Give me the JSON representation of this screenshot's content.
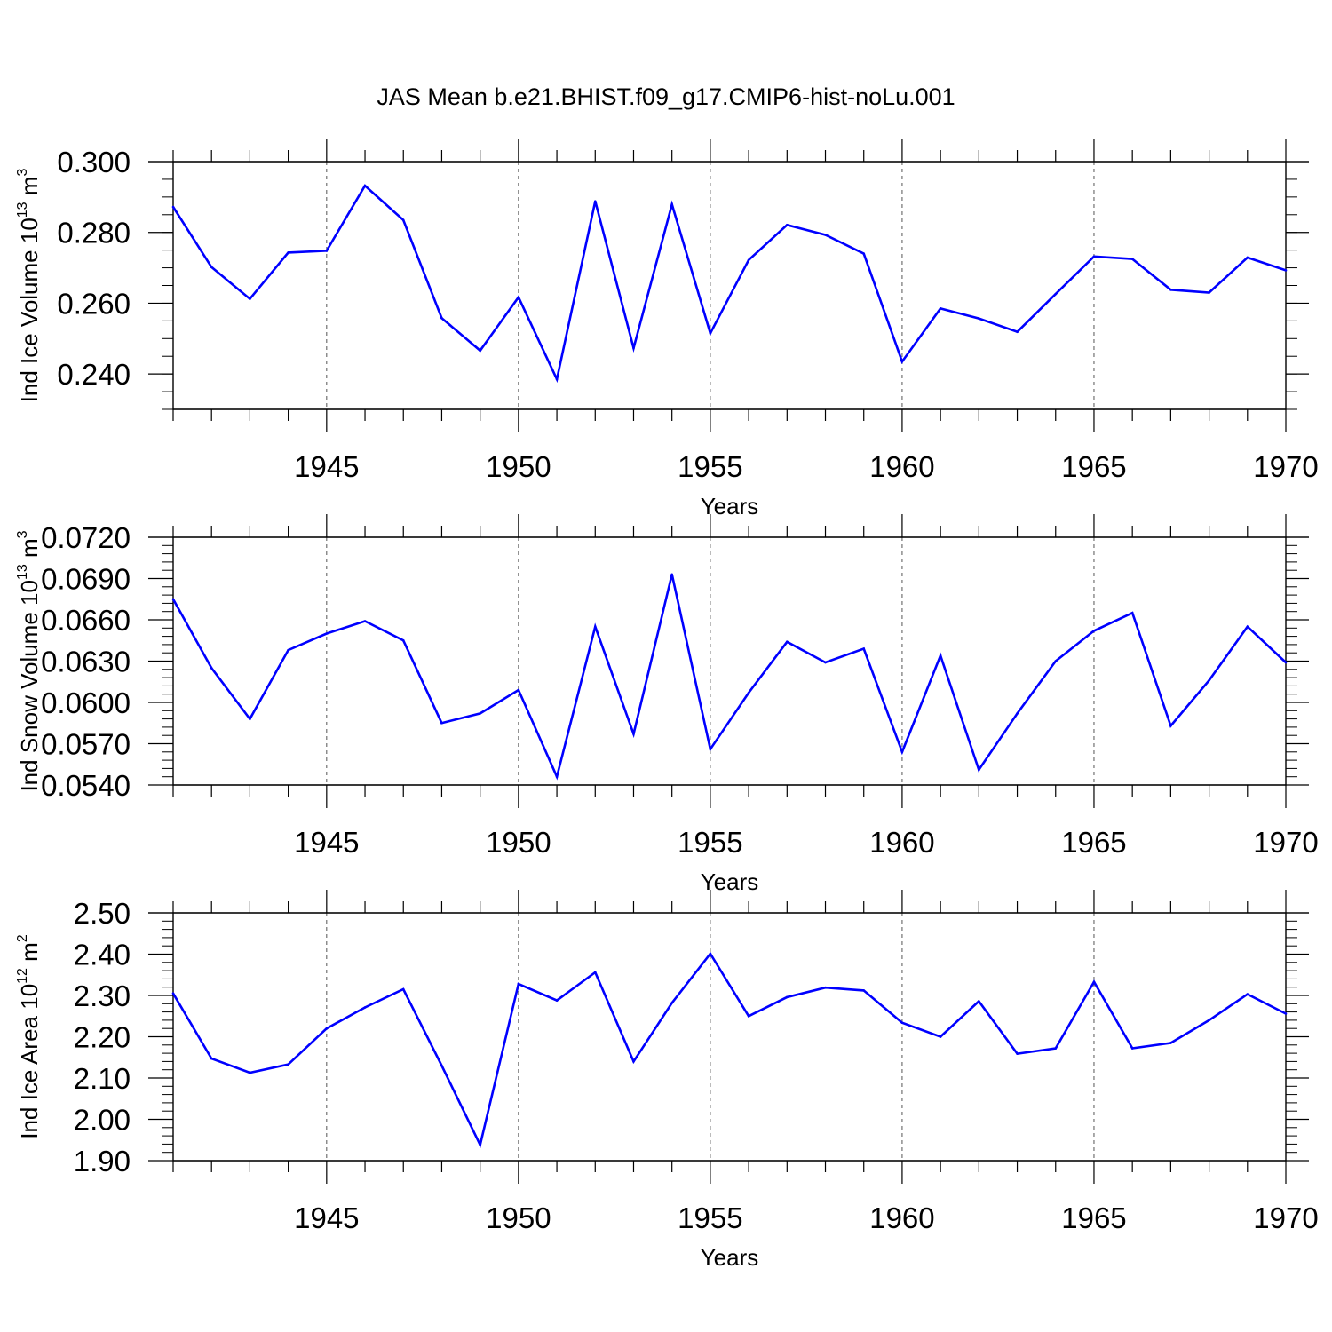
{
  "figure_title": "JAS Mean b.e21.BHIST.f09_g17.CMIP6-hist-noLu.001",
  "colors": {
    "line": "#0000ff",
    "axes": "#000000",
    "grid": "#555555"
  },
  "chart_data": [
    {
      "type": "line",
      "ylabel_main": "Ind Ice Volume 10",
      "ylabel_exp": "13",
      "ylabel_unit": " m",
      "ylabel_unit_exp": "3",
      "xlabel": "Years",
      "xlim": [
        1941,
        1970
      ],
      "ylim": [
        0.23,
        0.3
      ],
      "yticks": [
        0.24,
        0.26,
        0.28,
        0.3
      ],
      "ytick_labels": [
        "0.240",
        "0.260",
        "0.280",
        "0.300"
      ],
      "yminor_step": 0.005,
      "xticks": [
        1945,
        1950,
        1955,
        1960,
        1965,
        1970
      ],
      "xtick_labels": [
        "1945",
        "1950",
        "1955",
        "1960",
        "1965",
        "1970"
      ],
      "x": [
        1941,
        1942,
        1943,
        1944,
        1945,
        1946,
        1947,
        1948,
        1949,
        1950,
        1951,
        1952,
        1953,
        1954,
        1955,
        1956,
        1957,
        1958,
        1959,
        1960,
        1961,
        1962,
        1963,
        1964,
        1965,
        1966,
        1967,
        1968,
        1969,
        1970
      ],
      "values": [
        0.2872,
        0.2702,
        0.2612,
        0.2743,
        0.2748,
        0.2932,
        0.2835,
        0.2558,
        0.2466,
        0.2617,
        0.2385,
        0.2888,
        0.2473,
        0.2879,
        0.2515,
        0.2722,
        0.2821,
        0.2793,
        0.274,
        0.2435,
        0.2585,
        0.2557,
        0.2519,
        0.2626,
        0.2732,
        0.2725,
        0.2638,
        0.263,
        0.2729,
        0.2693
      ]
    },
    {
      "type": "line",
      "ylabel_main": "Ind Snow Volume 10",
      "ylabel_exp": "13",
      "ylabel_unit": " m",
      "ylabel_unit_exp": "3",
      "xlabel": "Years",
      "xlim": [
        1941,
        1970
      ],
      "ylim": [
        0.054,
        0.072
      ],
      "yticks": [
        0.054,
        0.057,
        0.06,
        0.063,
        0.066,
        0.069,
        0.072
      ],
      "ytick_labels": [
        "0.0540",
        "0.0570",
        "0.0600",
        "0.0630",
        "0.0660",
        "0.0690",
        "0.0720"
      ],
      "yminor_step": 0.0006,
      "xticks": [
        1945,
        1950,
        1955,
        1960,
        1965,
        1970
      ],
      "xtick_labels": [
        "1945",
        "1950",
        "1955",
        "1960",
        "1965",
        "1970"
      ],
      "x": [
        1941,
        1942,
        1943,
        1944,
        1945,
        1946,
        1947,
        1948,
        1949,
        1950,
        1951,
        1952,
        1953,
        1954,
        1955,
        1956,
        1957,
        1958,
        1959,
        1960,
        1961,
        1962,
        1963,
        1964,
        1965,
        1966,
        1967,
        1968,
        1969,
        1970
      ],
      "values": [
        0.0675,
        0.0625,
        0.0588,
        0.0638,
        0.065,
        0.0659,
        0.0645,
        0.0585,
        0.0592,
        0.0609,
        0.0546,
        0.0655,
        0.0577,
        0.0693,
        0.0566,
        0.0607,
        0.0644,
        0.0629,
        0.0639,
        0.0564,
        0.0634,
        0.0551,
        0.0592,
        0.063,
        0.0652,
        0.0665,
        0.0583,
        0.0616,
        0.0655,
        0.0629
      ]
    },
    {
      "type": "line",
      "ylabel_main": "Ind Ice Area 10",
      "ylabel_exp": "12",
      "ylabel_unit": " m",
      "ylabel_unit_exp": "2",
      "xlabel": "Years",
      "xlim": [
        1941,
        1970
      ],
      "ylim": [
        1.9,
        2.5
      ],
      "yticks": [
        1.9,
        2.0,
        2.1,
        2.2,
        2.3,
        2.4,
        2.5
      ],
      "ytick_labels": [
        "1.90",
        "2.00",
        "2.10",
        "2.20",
        "2.30",
        "2.40",
        "2.50"
      ],
      "yminor_step": 0.02,
      "xticks": [
        1945,
        1950,
        1955,
        1960,
        1965,
        1970
      ],
      "xtick_labels": [
        "1945",
        "1950",
        "1955",
        "1960",
        "1965",
        "1970"
      ],
      "x": [
        1941,
        1942,
        1943,
        1944,
        1945,
        1946,
        1947,
        1948,
        1949,
        1950,
        1951,
        1952,
        1953,
        1954,
        1955,
        1956,
        1957,
        1958,
        1959,
        1960,
        1961,
        1962,
        1963,
        1964,
        1965,
        1966,
        1967,
        1968,
        1969,
        1970
      ],
      "values": [
        2.305,
        2.147,
        2.113,
        2.133,
        2.22,
        2.271,
        2.315,
        2.13,
        1.938,
        2.328,
        2.288,
        2.356,
        2.14,
        2.282,
        2.401,
        2.25,
        2.296,
        2.319,
        2.312,
        2.234,
        2.2,
        2.286,
        2.159,
        2.172,
        2.333,
        2.172,
        2.185,
        2.24,
        2.303,
        2.256
      ]
    }
  ]
}
